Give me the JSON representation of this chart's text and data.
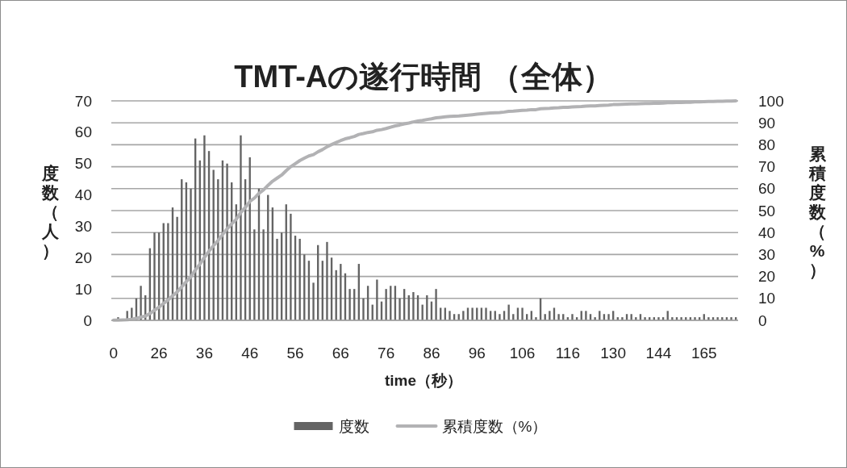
{
  "chart_data": {
    "type": "bar",
    "title": "TMT-Aの遂行時間 （全体）",
    "xlabel": "time（秒）",
    "ylabel": "度数（人）",
    "y2label": "累積度数（%）",
    "categories": [
      "0",
      null,
      null,
      null,
      null,
      null,
      null,
      null,
      null,
      null,
      "26",
      null,
      null,
      null,
      null,
      null,
      null,
      null,
      null,
      null,
      "36",
      null,
      null,
      null,
      null,
      null,
      null,
      null,
      null,
      null,
      "46",
      null,
      null,
      null,
      null,
      null,
      null,
      null,
      null,
      null,
      "56",
      null,
      null,
      null,
      null,
      null,
      null,
      null,
      null,
      null,
      "66",
      null,
      null,
      null,
      null,
      null,
      null,
      null,
      null,
      null,
      "76",
      null,
      null,
      null,
      null,
      null,
      null,
      null,
      null,
      null,
      "86",
      null,
      null,
      null,
      null,
      null,
      null,
      null,
      null,
      null,
      "96",
      null,
      null,
      null,
      null,
      null,
      null,
      null,
      null,
      null,
      "106",
      null,
      null,
      null,
      null,
      null,
      null,
      null,
      null,
      null,
      "116",
      null,
      null,
      null,
      null,
      null,
      null,
      null,
      null,
      null,
      "130",
      null,
      null,
      null,
      null,
      null,
      null,
      null,
      null,
      null,
      "144",
      null,
      null,
      null,
      null,
      null,
      null,
      null,
      null,
      null,
      "165",
      null,
      null,
      null,
      null,
      null,
      null,
      null
    ],
    "series": [
      {
        "name": "度数",
        "color": "#646464",
        "values": [
          null,
          1,
          null,
          3,
          4,
          7,
          11,
          8,
          23,
          28,
          28,
          31,
          31,
          36,
          33,
          45,
          44,
          42,
          58,
          51,
          59,
          54,
          48,
          45,
          51,
          50,
          44,
          37,
          59,
          45,
          52,
          29,
          42,
          29,
          40,
          36,
          26,
          28,
          37,
          34,
          27,
          26,
          21,
          19,
          12,
          24,
          19,
          25,
          20,
          16,
          18,
          15,
          10,
          10,
          18,
          7,
          11,
          5,
          13,
          6,
          10,
          11,
          11,
          7,
          10,
          8,
          9,
          8,
          5,
          8,
          6,
          10,
          4,
          4,
          3,
          2,
          2,
          3,
          4,
          4,
          4,
          4,
          4,
          3,
          3,
          2,
          3,
          5,
          2,
          4,
          4,
          2,
          3,
          1,
          7,
          2,
          3,
          4,
          2,
          2,
          1,
          2,
          1,
          3,
          3,
          2,
          1,
          3,
          2,
          2,
          3,
          1,
          1,
          2,
          2,
          1,
          2,
          1,
          1,
          1,
          1,
          1,
          3,
          1,
          1,
          1,
          1,
          1,
          1,
          1,
          2,
          1,
          1,
          1,
          1,
          1,
          1,
          1
        ]
      },
      {
        "name": "累積度数（%）",
        "type": "line",
        "axis": "y2",
        "color": "#b2b2b4",
        "values": [
          0.1,
          0.1,
          0.2,
          0.3,
          0.5,
          0.9,
          1.5,
          1.9,
          3.1,
          4.6,
          6.0,
          7.7,
          9.3,
          11.2,
          12.9,
          15.3,
          17.6,
          19.8,
          22.9,
          25.6,
          28.7,
          31.5,
          34.0,
          36.4,
          39.1,
          41.7,
          44.0,
          46.0,
          49.1,
          51.4,
          54.2,
          55.7,
          57.9,
          59.4,
          61.5,
          63.4,
          64.8,
          66.2,
          68.2,
          70.0,
          71.4,
          72.8,
          73.9,
          74.9,
          75.5,
          76.8,
          77.8,
          79.1,
          80.1,
          81.0,
          81.9,
          82.7,
          83.2,
          83.8,
          84.7,
          85.1,
          85.6,
          85.9,
          86.6,
          86.9,
          87.4,
          88.0,
          88.6,
          89.0,
          89.5,
          89.9,
          90.4,
          90.8,
          91.1,
          91.5,
          91.8,
          92.3,
          92.5,
          92.7,
          92.9,
          93.0,
          93.1,
          93.3,
          93.5,
          93.7,
          93.9,
          94.1,
          94.3,
          94.5,
          94.6,
          94.7,
          94.9,
          95.2,
          95.3,
          95.5,
          95.7,
          95.8,
          96.0,
          96.0,
          96.4,
          96.5,
          96.6,
          96.8,
          96.9,
          97.1,
          97.1,
          97.2,
          97.3,
          97.4,
          97.6,
          97.7,
          97.7,
          97.9,
          98.0,
          98.1,
          98.3,
          98.3,
          98.4,
          98.5,
          98.6,
          98.6,
          98.7,
          98.8,
          98.8,
          98.9,
          98.9,
          99.0,
          99.2,
          99.2,
          99.3,
          99.3,
          99.4,
          99.4,
          99.5,
          99.5,
          99.6,
          99.7,
          99.7,
          99.8,
          99.8,
          99.9,
          99.9,
          100
        ]
      }
    ],
    "ylim": [
      0,
      70
    ],
    "yticks": [
      0,
      10,
      20,
      30,
      40,
      50,
      60,
      70
    ],
    "y2lim": [
      0,
      100
    ],
    "y2ticks": [
      0,
      10,
      20,
      30,
      40,
      50,
      60,
      70,
      80,
      90,
      100
    ],
    "grid": "y",
    "legend": "bottom",
    "marker": "none"
  }
}
